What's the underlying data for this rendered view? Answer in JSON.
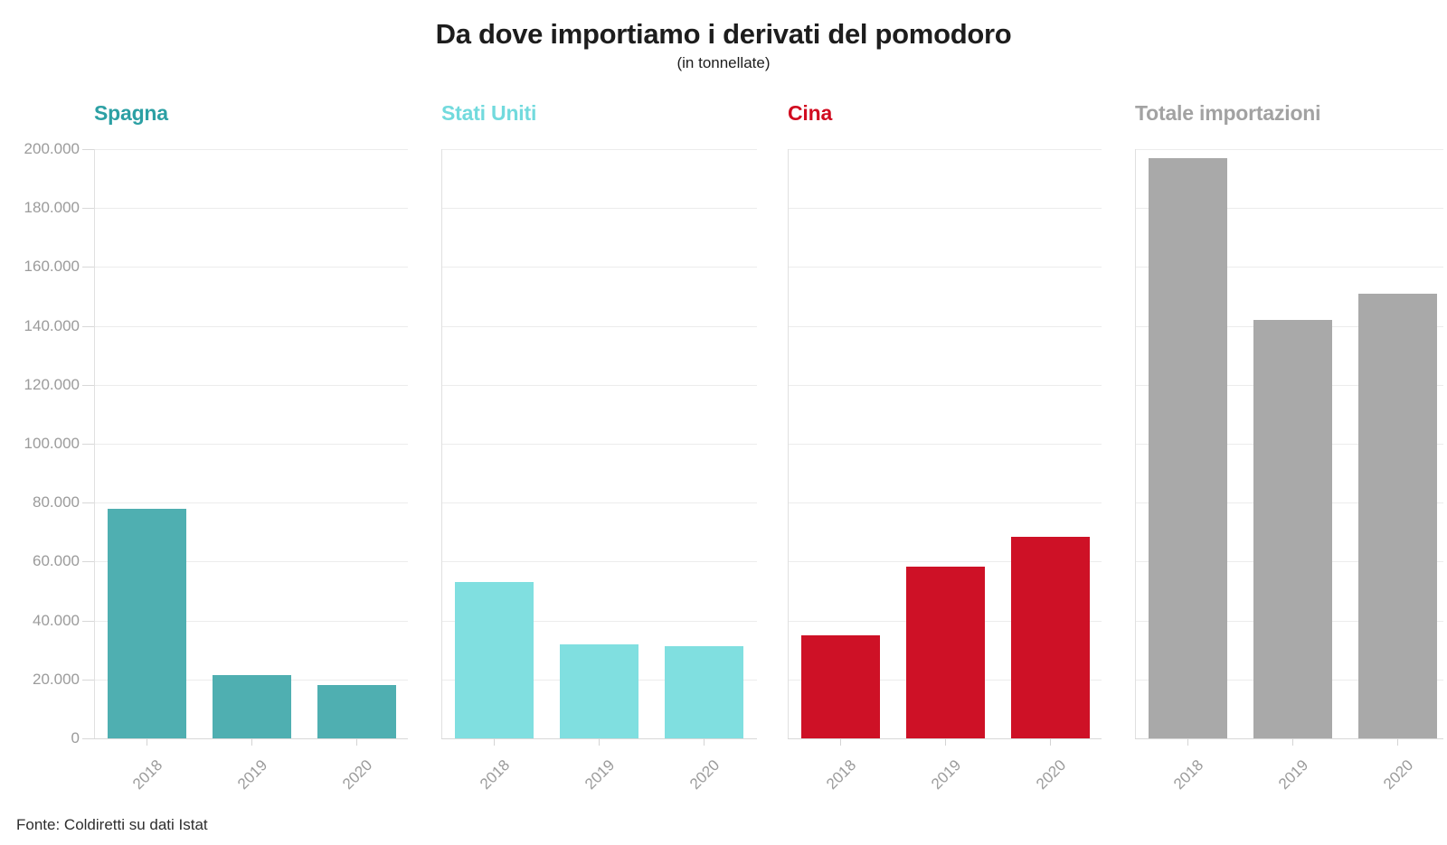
{
  "header": {
    "title": "Da dove importiamo i derivati del pomodoro",
    "subtitle": "(in tonnellate)"
  },
  "footer": {
    "source": "Fonte: Coldiretti su dati Istat"
  },
  "chart_data": {
    "type": "bar",
    "layout": "small-multiples",
    "title": "Da dove importiamo i derivati del pomodoro",
    "subtitle": "(in tonnellate)",
    "unit": "tonnellate",
    "categories": [
      "2018",
      "2019",
      "2020"
    ],
    "ylim": [
      0,
      200000
    ],
    "ytick_step": 20000,
    "ytick_labels": [
      "0",
      "20.000",
      "40.000",
      "60.000",
      "80.000",
      "100.000",
      "120.000",
      "140.000",
      "160.000",
      "180.000",
      "200.000"
    ],
    "grid": true,
    "legend_position": "none",
    "panels": [
      {
        "name": "Spagna",
        "title_color": "#2ca0a4",
        "bar_color": "#4fafb1",
        "values": [
          78000,
          21500,
          18000
        ]
      },
      {
        "name": "Stati Uniti",
        "title_color": "#72dadd",
        "bar_color": "#80dfe0",
        "values": [
          53000,
          32000,
          31300
        ]
      },
      {
        "name": "Cina",
        "title_color": "#d10c20",
        "bar_color": "#ce1126",
        "values": [
          35000,
          58300,
          68500
        ]
      },
      {
        "name": "Totale importazioni",
        "title_color": "#a2a2a2",
        "bar_color": "#a9a9a9",
        "values": [
          197000,
          142000,
          151000
        ]
      }
    ]
  }
}
